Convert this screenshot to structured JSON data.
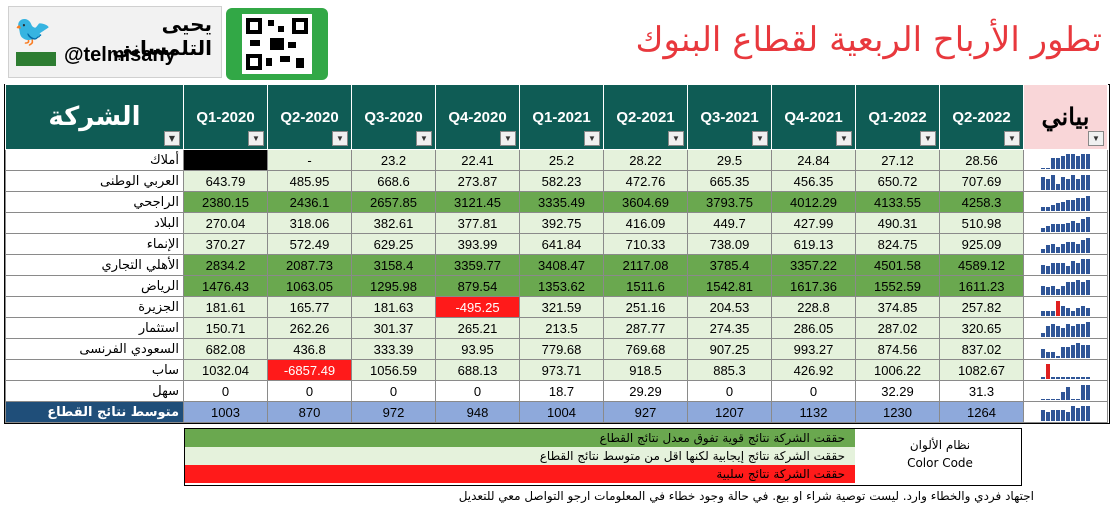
{
  "header": {
    "author_name": "يحيى التلمساني",
    "handle": "@telmisany",
    "title": "تطور الأرباح الربعية لقطاع البنوك"
  },
  "table": {
    "company_header": "الشركة",
    "sparkline_header": "بياني",
    "quarters": [
      "Q1-2020",
      "Q2-2020",
      "Q3-2020",
      "Q4-2020",
      "Q1-2021",
      "Q2-2021",
      "Q3-2021",
      "Q4-2021",
      "Q1-2022",
      "Q2-2022"
    ],
    "rows": [
      {
        "name": "أملاك",
        "values": [
          "",
          "-",
          "23.2",
          "22.41",
          "25.2",
          "28.22",
          "29.5",
          "24.84",
          "27.12",
          "28.56"
        ],
        "styles": [
          "bk",
          "pl",
          "pl",
          "pl",
          "pl",
          "pl",
          "pl",
          "pl",
          "pl",
          "pl"
        ],
        "spark": [
          0,
          0,
          5,
          5,
          6,
          7,
          7,
          6,
          7,
          7
        ]
      },
      {
        "name": "العربي الوطنى",
        "values": [
          "643.79",
          "485.95",
          "668.6",
          "273.87",
          "582.23",
          "472.76",
          "665.35",
          "456.35",
          "650.72",
          "707.69"
        ],
        "styles": [
          "pl",
          "pl",
          "pl",
          "pl",
          "pl",
          "pl",
          "pl",
          "pl",
          "pl",
          "pl"
        ],
        "spark": [
          6,
          5,
          7,
          3,
          6,
          5,
          7,
          5,
          7,
          7
        ]
      },
      {
        "name": "الراجحي",
        "values": [
          "2380.15",
          "2436.1",
          "2657.85",
          "3121.45",
          "3335.49",
          "3604.69",
          "3793.75",
          "4012.29",
          "4133.55",
          "4258.3"
        ],
        "styles": [
          "lg",
          "lg",
          "lg",
          "lg",
          "lg",
          "lg",
          "lg",
          "lg",
          "lg",
          "lg"
        ],
        "spark": [
          2,
          2,
          3,
          4,
          5,
          6,
          6,
          7,
          7,
          8
        ]
      },
      {
        "name": "البلاد",
        "values": [
          "270.04",
          "318.06",
          "382.61",
          "377.81",
          "392.75",
          "416.09",
          "449.7",
          "427.99",
          "490.31",
          "510.98"
        ],
        "styles": [
          "pl",
          "pl",
          "pl",
          "pl",
          "pl",
          "pl",
          "pl",
          "pl",
          "pl",
          "pl"
        ],
        "spark": [
          2,
          3,
          4,
          4,
          4,
          5,
          6,
          5,
          7,
          8
        ]
      },
      {
        "name": "الإنماء",
        "values": [
          "370.27",
          "572.49",
          "629.25",
          "393.99",
          "641.84",
          "710.33",
          "738.09",
          "619.13",
          "824.75",
          "925.09"
        ],
        "styles": [
          "pl",
          "pl",
          "pl",
          "pl",
          "pl",
          "pl",
          "pl",
          "pl",
          "pl",
          "pl"
        ],
        "spark": [
          2,
          4,
          5,
          3,
          5,
          6,
          6,
          5,
          7,
          8
        ]
      },
      {
        "name": "الأهلي التجاري",
        "values": [
          "2834.2",
          "2087.73",
          "3158.4",
          "3359.77",
          "3408.47",
          "2117.08",
          "3785.4",
          "3357.22",
          "4501.58",
          "4589.12"
        ],
        "styles": [
          "lg",
          "lg",
          "lg",
          "lg",
          "lg",
          "lg",
          "lg",
          "lg",
          "lg",
          "lg"
        ],
        "spark": [
          5,
          4,
          6,
          6,
          6,
          4,
          7,
          6,
          8,
          8
        ]
      },
      {
        "name": "الرياض",
        "values": [
          "1476.43",
          "1063.05",
          "1295.98",
          "879.54",
          "1353.62",
          "1511.6",
          "1542.81",
          "1617.36",
          "1552.59",
          "1611.23"
        ],
        "styles": [
          "lg",
          "lg",
          "lg",
          "lg",
          "lg",
          "lg",
          "lg",
          "lg",
          "lg",
          "lg"
        ],
        "spark": [
          5,
          4,
          5,
          3,
          5,
          7,
          7,
          8,
          7,
          8
        ]
      },
      {
        "name": "الجزيرة",
        "values": [
          "181.61",
          "165.77",
          "181.63",
          "-495.25",
          "321.59",
          "251.16",
          "204.53",
          "228.8",
          "374.85",
          "257.82"
        ],
        "styles": [
          "pl",
          "pl",
          "pl",
          "rd",
          "pl",
          "pl",
          "pl",
          "pl",
          "pl",
          "pl"
        ],
        "spark": [
          2,
          2,
          2,
          -6,
          4,
          3,
          2,
          3,
          4,
          3
        ]
      },
      {
        "name": "استثمار",
        "values": [
          "150.71",
          "262.26",
          "301.37",
          "265.21",
          "213.5",
          "287.77",
          "274.35",
          "286.05",
          "287.02",
          "320.65"
        ],
        "styles": [
          "pl",
          "pl",
          "pl",
          "pl",
          "pl",
          "pl",
          "pl",
          "pl",
          "pl",
          "pl"
        ],
        "spark": [
          2,
          5,
          6,
          5,
          4,
          6,
          5,
          6,
          6,
          7
        ]
      },
      {
        "name": "السعودي الفرنسى",
        "values": [
          "682.08",
          "436.8",
          "333.39",
          "93.95",
          "779.68",
          "769.68",
          "907.25",
          "993.27",
          "874.56",
          "837.02"
        ],
        "styles": [
          "pl",
          "pl",
          "pl",
          "pl",
          "pl",
          "pl",
          "pl",
          "pl",
          "pl",
          "pl"
        ],
        "spark": [
          5,
          3,
          3,
          1,
          6,
          6,
          7,
          8,
          7,
          7
        ]
      },
      {
        "name": "ساب",
        "values": [
          "1032.04",
          "-6857.49",
          "1056.59",
          "688.13",
          "973.71",
          "918.5",
          "885.3",
          "426.92",
          "1006.22",
          "1082.67"
        ],
        "styles": [
          "pl",
          "rd",
          "pl",
          "pl",
          "pl",
          "pl",
          "pl",
          "pl",
          "pl",
          "pl"
        ],
        "spark": [
          1,
          -8,
          1,
          1,
          1,
          1,
          1,
          1,
          1,
          1
        ]
      },
      {
        "name": "سهل",
        "values": [
          "0",
          "0",
          "0",
          "0",
          "18.7",
          "29.29",
          "0",
          "0",
          "32.29",
          "31.3"
        ],
        "styles": [
          "",
          "",
          "",
          "",
          "",
          "",
          "",
          "",
          "",
          ""
        ],
        "spark": [
          0,
          0,
          0,
          0,
          5,
          8,
          0,
          0,
          9,
          9
        ]
      }
    ],
    "average": {
      "label": "متوسط نتائج القطاع",
      "values": [
        "1003",
        "870",
        "972",
        "948",
        "1004",
        "927",
        "1207",
        "1132",
        "1230",
        "1264"
      ],
      "spark": [
        6,
        5,
        6,
        6,
        6,
        5,
        8,
        7,
        8,
        8
      ]
    }
  },
  "legend": {
    "strong": "حققت الشركة نتائج قوية تفوق معدل نتائج القطاع",
    "positive": "حققت الشركة نتائج إيجابية لكنها اقل من متوسط نتائج القطاع",
    "negative": "حققت الشركة نتائج سلبية",
    "title_ar": "نظام الألوان",
    "title_en": "Color Code"
  },
  "disclaimer": "اجتهاد فردي والخطاء وارد. ليست توصية شراء او بيع. في حالة وجود خطاء في المعلومات ارجو التواصل معي للتعديل",
  "colors": {
    "strong": "#6aa84f",
    "positive": "#e5f2dc",
    "negative": "#ff1a1a",
    "header": "#0f5c55",
    "title": "#e8383d"
  }
}
